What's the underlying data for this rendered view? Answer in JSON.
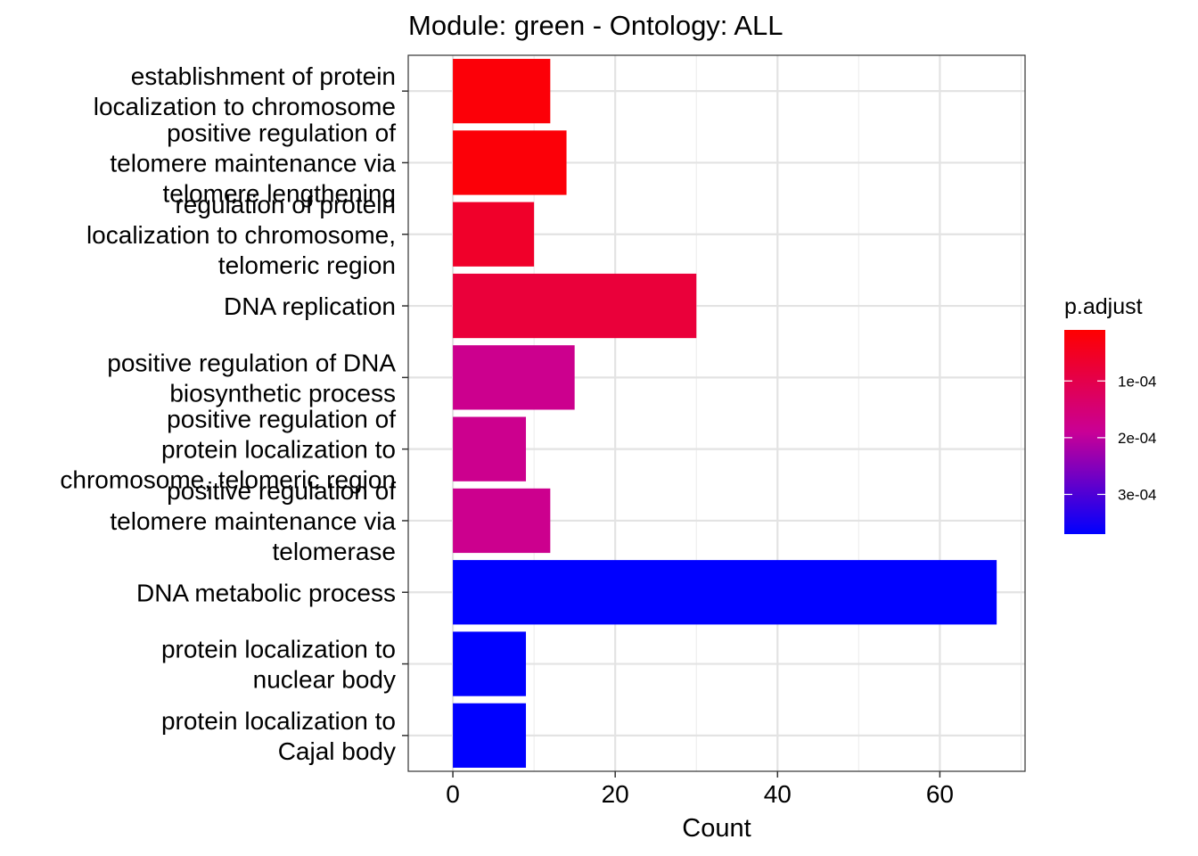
{
  "chart_data": {
    "type": "bar",
    "orientation": "horizontal",
    "title": "Module: green - Ontology: ALL",
    "xlabel": "Count",
    "ylabel": "",
    "xlim": [
      -5.5,
      70.5
    ],
    "x_ticks": [
      0,
      20,
      40,
      60
    ],
    "grid": true,
    "legend_position": "right",
    "categories": [
      "establishment of protein localization to chromosome",
      "positive regulation of telomere maintenance via telomere lengthening",
      "regulation of protein localization to chromosome, telomeric region",
      "DNA replication",
      "positive regulation of DNA biosynthetic process",
      "positive regulation of protein localization to chromosome, telomeric region",
      "positive regulation of telomere maintenance via telomerase",
      "DNA metabolic process",
      "protein localization to nuclear body",
      "protein localization to Cajal body"
    ],
    "category_label_lines": [
      [
        "establishment of protein",
        "localization to chromosome"
      ],
      [
        "positive regulation of",
        "telomere maintenance via",
        "telomere lengthening"
      ],
      [
        "regulation of protein",
        "localization to chromosome,",
        "telomeric region"
      ],
      [
        "DNA replication"
      ],
      [
        "positive regulation of DNA",
        "biosynthetic process"
      ],
      [
        "positive regulation of",
        "protein localization to",
        "chromosome, telomeric region"
      ],
      [
        "positive regulation of",
        "telomere maintenance via",
        "telomerase"
      ],
      [
        "DNA metabolic process"
      ],
      [
        "protein localization to",
        "nuclear body"
      ],
      [
        "protein localization to",
        "Cajal body"
      ]
    ],
    "values": [
      12,
      14,
      10,
      30,
      15,
      9,
      12,
      67,
      9,
      9
    ],
    "p_adjust": [
      2e-05,
      2e-05,
      6e-05,
      8e-05,
      0.00018,
      0.00018,
      0.00018,
      0.00037,
      0.00037,
      0.00037
    ],
    "color_scale": {
      "title": "p.adjust",
      "low_color": "#FF0000",
      "high_color": "#0000FF",
      "domain": [
        1e-05,
        0.00037
      ],
      "ticks": [
        0.0001,
        0.0002,
        0.0003
      ],
      "tick_labels": [
        "1e-04",
        "2e-04",
        "3e-04"
      ]
    }
  }
}
